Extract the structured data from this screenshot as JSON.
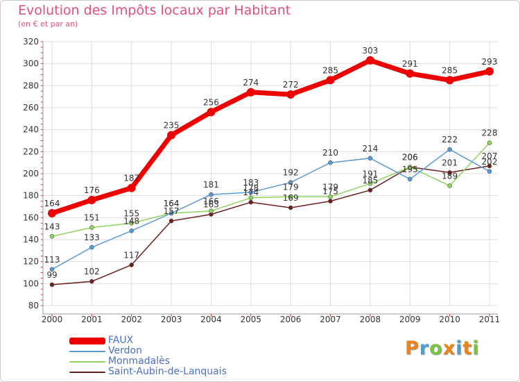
{
  "chart_data": {
    "type": "line",
    "title": "Evolution des Impôts locaux par Habitant",
    "subtitle": "(en € et par an)",
    "x": [
      "2000",
      "2001",
      "2002",
      "2003",
      "2004",
      "2005",
      "2006",
      "2007",
      "2008",
      "2009",
      "2010",
      "2011"
    ],
    "ylim": [
      80,
      320
    ],
    "yticks": [
      80,
      100,
      120,
      140,
      160,
      180,
      200,
      220,
      240,
      260,
      280,
      300,
      320
    ],
    "grid": true,
    "legend_position": "bottom-left",
    "series": [
      {
        "name": "FAUX",
        "color": "#ee0000",
        "values": [
          164,
          176,
          187,
          235,
          256,
          274,
          272,
          285,
          303,
          291,
          285,
          293
        ],
        "labels": [
          "164",
          "176",
          "187",
          "235",
          "256",
          "274",
          "272",
          "285",
          "303",
          "291",
          "285",
          "293"
        ]
      },
      {
        "name": "Verdon",
        "color": "#5b9bd5",
        "values": [
          113,
          133,
          148,
          164,
          181,
          183,
          192,
          210,
          214,
          195,
          222,
          202
        ],
        "labels": [
          "113",
          "133",
          "148",
          "164",
          "181",
          "183",
          "192",
          "210",
          "214",
          "195",
          "222",
          "202"
        ]
      },
      {
        "name": "Monmadalès",
        "color": "#8fd45c",
        "values": [
          143,
          151,
          155,
          164,
          166,
          178,
          179,
          179,
          191,
          206,
          189,
          228
        ],
        "labels": [
          "143",
          "151",
          "155",
          "164",
          "166",
          "178",
          "179",
          "179",
          "191",
          "206",
          "189",
          "228"
        ]
      },
      {
        "name": "Saint-Aubin-de-Lanquais",
        "color": "#6b1f1f",
        "values": [
          99,
          102,
          117,
          157,
          163,
          174,
          169,
          175,
          185,
          206,
          201,
          207
        ],
        "labels": [
          "99",
          "102",
          "117",
          "157",
          "163",
          "174",
          "169",
          "175",
          "185",
          "206",
          "201",
          "207"
        ]
      }
    ]
  },
  "logo": {
    "letters": [
      "P",
      "r",
      "o",
      "x",
      "i",
      "t",
      "i"
    ],
    "colors": [
      "#e8851c",
      "#4b9fd8",
      "#7cc242",
      "#e8851c",
      "#4b9fd8",
      "#e8851c",
      "#7cc242"
    ]
  }
}
